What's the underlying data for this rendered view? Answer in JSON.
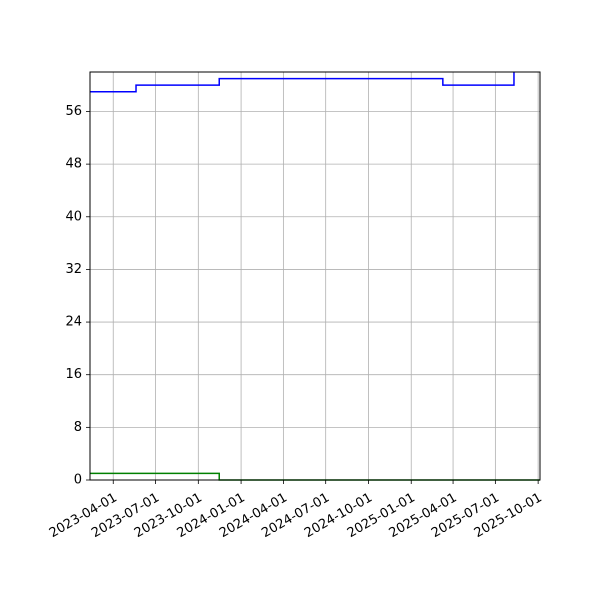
{
  "chart_data": {
    "type": "line",
    "title": "",
    "xlabel": "",
    "ylabel": "",
    "grid": true,
    "x_axis": {
      "type": "date",
      "range": [
        "2023-02-10",
        "2025-10-05"
      ],
      "ticks": [
        "2023-04-01",
        "2023-07-01",
        "2023-10-01",
        "2024-01-01",
        "2024-04-01",
        "2024-07-01",
        "2024-10-01",
        "2025-01-01",
        "2025-04-01",
        "2025-07-01",
        "2025-10-01"
      ]
    },
    "y_axis": {
      "range": [
        0,
        62
      ],
      "ticks": [
        0,
        8,
        16,
        24,
        32,
        40,
        48,
        56
      ]
    },
    "series": [
      {
        "color": "#0000ff",
        "step": "post",
        "points": [
          {
            "x": "2023-02-10",
            "y": 59
          },
          {
            "x": "2023-05-20",
            "y": 60
          },
          {
            "x": "2023-11-15",
            "y": 61
          },
          {
            "x": "2025-03-10",
            "y": 60
          },
          {
            "x": "2025-08-10",
            "y": 62
          }
        ],
        "end": "2025-08-10"
      },
      {
        "color": "#008000",
        "step": "post",
        "points": [
          {
            "x": "2023-02-10",
            "y": 1
          },
          {
            "x": "2023-11-15",
            "y": 0
          }
        ],
        "end": "2025-10-05"
      }
    ]
  }
}
